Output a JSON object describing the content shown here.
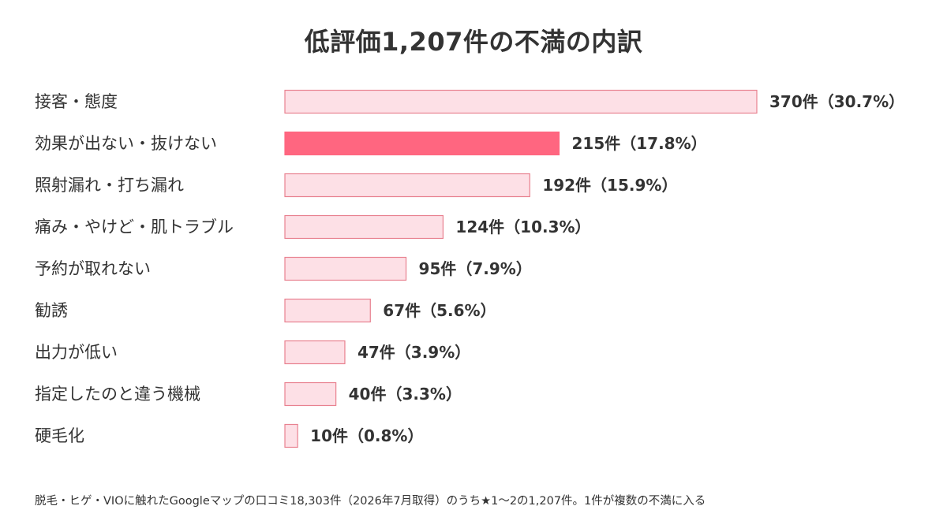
{
  "chart_data": {
    "type": "bar",
    "orientation": "horizontal",
    "title": "低評価1,207件の不満の内訳",
    "categories": [
      "接客・態度",
      "効果が出ない・抜けない",
      "照射漏れ・打ち漏れ",
      "痛み・やけど・肌トラブル",
      "予約が取れない",
      "勧誘",
      "出力が低い",
      "指定したのと違う機械",
      "硬毛化"
    ],
    "values": [
      370,
      215,
      192,
      124,
      95,
      67,
      47,
      40,
      10
    ],
    "value_labels": [
      "370件（30.7%）",
      "215件（17.8%）",
      "192件（15.9%）",
      "124件（10.3%）",
      "95件（7.9%）",
      "67件（5.6%）",
      "47件（3.9%）",
      "40件（3.3%）",
      "10件（0.8%）"
    ],
    "highlight_index": 1,
    "xlim": [
      0,
      370
    ],
    "grid": false,
    "legend": "none"
  },
  "colors": {
    "bar_fill": "#fde0e6",
    "bar_stroke": "#e8818f",
    "highlight_fill": "#ff6680",
    "text": "#333333"
  },
  "footnote": "脱毛・ヒゲ・VIOに触れたGoogleマップの口コミ18,303件（2026年7月取得）のうち★1〜2の1,207件。1件が複数の不満に入る"
}
